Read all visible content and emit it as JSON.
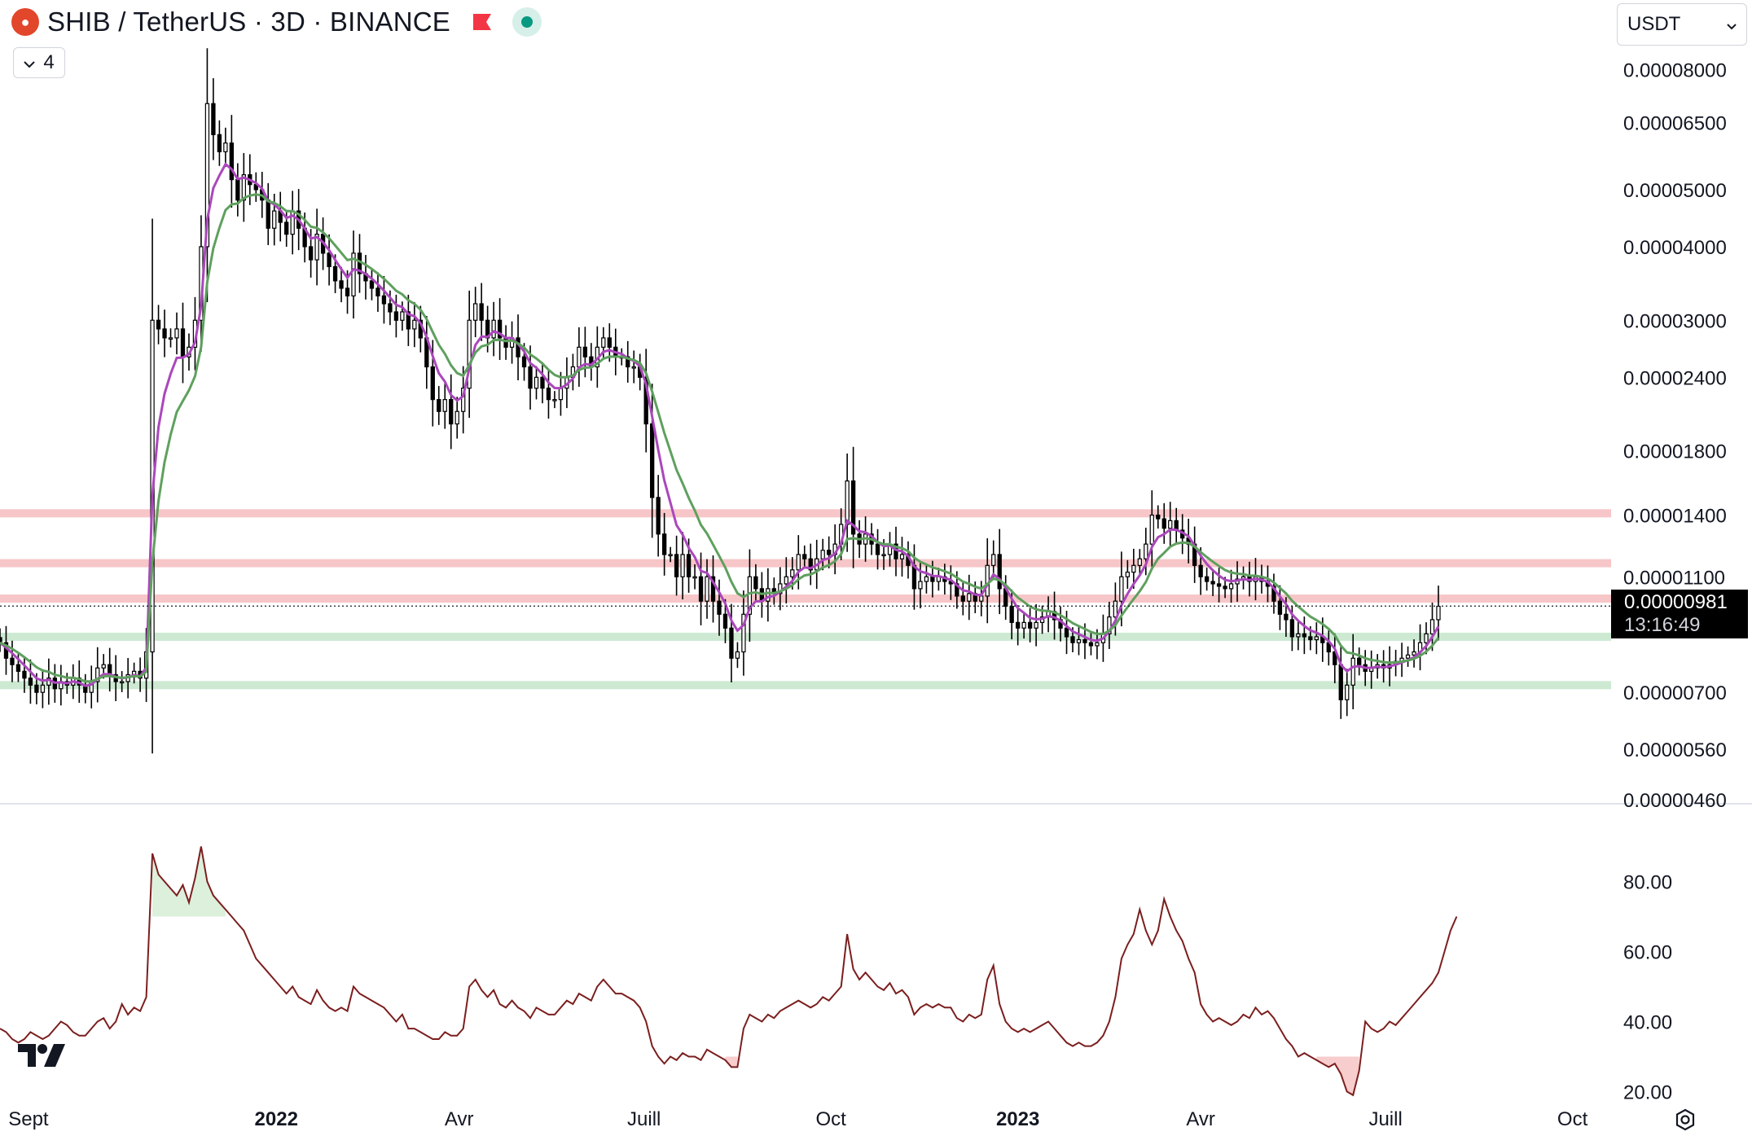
{
  "header": {
    "title": "SHIB / TetherUS · 3D · BINANCE",
    "collapse_count": "4",
    "currency": "USDT",
    "coin_icon": "shiba-coin-icon",
    "flag_icon": "red-flag-icon",
    "status_icon": "live-dot-icon"
  },
  "current_price": {
    "value": "0.00000981",
    "countdown": "13:16:49"
  },
  "colors": {
    "candle": "#000000",
    "ema_fast": "#ab47bc",
    "ema_slow": "#5fa05f",
    "resistance_zone": "#f7c6c8",
    "support_zone": "#cde9d2",
    "rsi_line": "#7b1e1e",
    "rsi_overbought_fill": "#d8eed8",
    "rsi_oversold_fill": "#f6c8c8"
  },
  "chart_data": [
    {
      "type": "candlestick",
      "title": "SHIB / TetherUS · 3D · BINANCE",
      "y_scale": "log",
      "ylim": [
        4.6e-06,
        8.4e-05
      ],
      "y_ticks": [
        "0.00008000",
        "0.00006500",
        "0.00005000",
        "0.00004000",
        "0.00003000",
        "0.00002400",
        "0.00001800",
        "0.00001400",
        "0.00001100",
        "0.00000700",
        "0.00000560",
        "0.00000460"
      ],
      "y_tick_values": [
        8e-05,
        6.5e-05,
        5e-05,
        4e-05,
        3e-05,
        2.4e-05,
        1.8e-05,
        1.4e-05,
        1.1e-05,
        7e-06,
        5.6e-06,
        4.6e-06
      ],
      "x_ticks": [
        "Sept",
        "2022",
        "Avr",
        "Juill",
        "Oct",
        "2023",
        "Avr",
        "Juill",
        "Oct"
      ],
      "x_tick_dates": [
        "2021-09-01",
        "2022-01-01",
        "2022-04-01",
        "2022-07-01",
        "2022-10-01",
        "2023-01-01",
        "2023-04-01",
        "2023-07-01",
        "2023-10-01"
      ],
      "x_range": [
        "2021-08-18",
        "2023-10-20"
      ],
      "last_price": 9.81e-06,
      "resistance_zones": [
        1.41e-05,
        1.16e-05,
        1.01e-05
      ],
      "support_zones": [
        8.7e-06,
        7.2e-06
      ],
      "close_series": {
        "start": "2021-08-18",
        "interval_days": 3,
        "values": [
          8.5e-06,
          8e-06,
          7.8e-06,
          7.6e-06,
          7.4e-06,
          7.2e-06,
          7e-06,
          7.2e-06,
          7.4e-06,
          7.1e-06,
          7.3e-06,
          7.2e-06,
          7.4e-06,
          7.2e-06,
          7e-06,
          7.3e-06,
          7.7e-06,
          7.8e-06,
          7.5e-06,
          7.3e-06,
          7.3e-06,
          7.5e-06,
          7.6e-06,
          7.4e-06,
          8.2e-06,
          3e-05,
          2.9e-05,
          2.8e-05,
          2.8e-05,
          2.9e-05,
          2.6e-05,
          2.7e-05,
          3e-05,
          4e-05,
          7e-05,
          6.2e-05,
          5.8e-05,
          6e-05,
          5.2e-05,
          4.8e-05,
          5.3e-05,
          5.1e-05,
          5e-05,
          4.8e-05,
          4.3e-05,
          4.6e-05,
          4.4e-05,
          4.2e-05,
          4.6e-05,
          4.3e-05,
          4e-05,
          3.8e-05,
          4.2e-05,
          3.9e-05,
          3.7e-05,
          3.5e-05,
          3.4e-05,
          3.3e-05,
          3.9e-05,
          3.6e-05,
          3.5e-05,
          3.4e-05,
          3.3e-05,
          3.2e-05,
          3.1e-05,
          3e-05,
          3.1e-05,
          2.9e-05,
          3e-05,
          2.8e-05,
          2.5e-05,
          2.2e-05,
          2.1e-05,
          2.2e-05,
          2e-05,
          2.1e-05,
          2.3e-05,
          3e-05,
          3.2e-05,
          3e-05,
          2.8e-05,
          3e-05,
          2.8e-05,
          2.7e-05,
          2.8e-05,
          2.6e-05,
          2.5e-05,
          2.3e-05,
          2.4e-05,
          2.3e-05,
          2.2e-05,
          2.2e-05,
          2.3e-05,
          2.4e-05,
          2.5e-05,
          2.7e-05,
          2.6e-05,
          2.5e-05,
          2.7e-05,
          2.8e-05,
          2.7e-05,
          2.6e-05,
          2.6e-05,
          2.5e-05,
          2.5e-05,
          2.4e-05,
          2e-05,
          1.5e-05,
          1.3e-05,
          1.2e-05,
          1.2e-05,
          1.1e-05,
          1.2e-05,
          1.1e-05,
          1.1e-05,
          1e-05,
          1.1e-05,
          1e-05,
          9.5e-06,
          9e-06,
          8e-06,
          8.2e-06,
          9.5e-06,
          1.1e-05,
          1.05e-05,
          1e-05,
          1.05e-05,
          1.03e-05,
          1.07e-05,
          1.1e-05,
          1.13e-05,
          1.2e-05,
          1.18e-05,
          1.13e-05,
          1.18e-05,
          1.22e-05,
          1.2e-05,
          1.25e-05,
          1.35e-05,
          1.6e-05,
          1.3e-05,
          1.25e-05,
          1.3e-05,
          1.25e-05,
          1.2e-05,
          1.2e-05,
          1.25e-05,
          1.18e-05,
          1.2e-05,
          1.15e-05,
          1.05e-05,
          1.08e-05,
          1.1e-05,
          1.08e-05,
          1.1e-05,
          1.08e-05,
          1.07e-05,
          1.02e-05,
          1e-05,
          1.03e-05,
          1e-05,
          1.02e-05,
          1.15e-05,
          1.2e-05,
          1.05e-05,
          9.8e-06,
          9.2e-06,
          9e-06,
          9.2e-06,
          9e-06,
          9.2e-06,
          9.4e-06,
          9.6e-06,
          9.3e-06,
          9e-06,
          8.7e-06,
          8.5e-06,
          8.6e-06,
          8.5e-06,
          8.4e-06,
          8.5e-06,
          8.8e-06,
          9.4e-06,
          1e-05,
          1.1e-05,
          1.12e-05,
          1.15e-05,
          1.18e-05,
          1.25e-05,
          1.4e-05,
          1.38e-05,
          1.33e-05,
          1.37e-05,
          1.32e-05,
          1.28e-05,
          1.25e-05,
          1.15e-05,
          1.1e-05,
          1.08e-05,
          1.07e-05,
          1.06e-05,
          1.05e-05,
          1.07e-05,
          1.09e-05,
          1.1e-05,
          1.08e-05,
          1.1e-05,
          1.08e-05,
          1.06e-05,
          1e-05,
          9.5e-06,
          9.3e-06,
          8.7e-06,
          8.8e-06,
          8.7e-06,
          8.6e-06,
          8.7e-06,
          8.5e-06,
          8.2e-06,
          7.8e-06,
          6.8e-06,
          7.2e-06,
          8e-06,
          7.8e-06,
          7.6e-06,
          7.7e-06,
          7.8e-06,
          7.7e-06,
          7.8e-06,
          7.9e-06,
          8e-06,
          8.1e-06,
          8.2e-06,
          8.5e-06,
          8.8e-06,
          9.3e-06,
          9.8e-06
        ]
      },
      "series": [
        {
          "name": "",
          "kind": "ema_fast",
          "follows": "close_series",
          "period": 5
        },
        {
          "name": "",
          "kind": "ema_slow",
          "follows": "close_series",
          "period": 10
        }
      ]
    },
    {
      "type": "line",
      "ylim": [
        15,
        95
      ],
      "y_ticks": [
        "80.00",
        "60.00",
        "40.00",
        "20.00"
      ],
      "y_tick_values": [
        80,
        60,
        40,
        20
      ],
      "overbought": 70,
      "oversold": 30,
      "values": [
        38,
        37,
        35,
        34,
        35,
        37,
        36,
        35,
        36,
        38,
        40,
        39,
        37,
        36,
        36,
        38,
        40,
        41,
        38,
        40,
        45,
        42,
        44,
        43,
        47,
        88,
        82,
        80,
        78,
        76,
        79,
        74,
        81,
        90,
        80,
        76,
        74,
        72,
        70,
        68,
        66,
        62,
        58,
        56,
        54,
        52,
        50,
        48,
        50,
        47,
        46,
        45,
        49,
        46,
        44,
        43,
        44,
        43,
        50,
        48,
        47,
        46,
        45,
        44,
        42,
        40,
        42,
        38,
        38,
        37,
        36,
        35,
        35,
        37,
        36,
        36,
        38,
        50,
        52,
        49,
        47,
        49,
        45,
        44,
        46,
        44,
        43,
        41,
        44,
        43,
        42,
        42,
        44,
        46,
        45,
        48,
        47,
        46,
        50,
        52,
        50,
        48,
        48,
        47,
        46,
        44,
        40,
        33,
        30,
        28,
        30,
        29,
        31,
        30,
        30,
        29,
        32,
        31,
        30,
        29,
        27,
        27,
        38,
        42,
        41,
        40,
        42,
        41,
        43,
        44,
        45,
        46,
        45,
        44,
        45,
        47,
        46,
        48,
        50,
        65,
        55,
        52,
        54,
        52,
        50,
        49,
        51,
        48,
        49,
        47,
        42,
        44,
        45,
        44,
        45,
        44,
        44,
        41,
        40,
        42,
        41,
        42,
        52,
        56,
        45,
        40,
        38,
        37,
        38,
        37,
        38,
        39,
        40,
        38,
        36,
        34,
        33,
        34,
        33,
        33,
        34,
        36,
        40,
        47,
        58,
        62,
        65,
        72,
        66,
        62,
        66,
        75,
        70,
        66,
        63,
        58,
        54,
        45,
        42,
        40,
        41,
        40,
        39,
        40,
        42,
        41,
        44,
        42,
        43,
        41,
        38,
        35,
        33,
        30,
        31,
        30,
        29,
        28,
        27,
        28,
        25,
        20,
        19,
        26,
        40,
        38,
        37,
        38,
        40,
        39,
        41,
        43,
        45,
        47,
        49,
        51,
        54,
        60,
        66,
        70
      ]
    }
  ]
}
